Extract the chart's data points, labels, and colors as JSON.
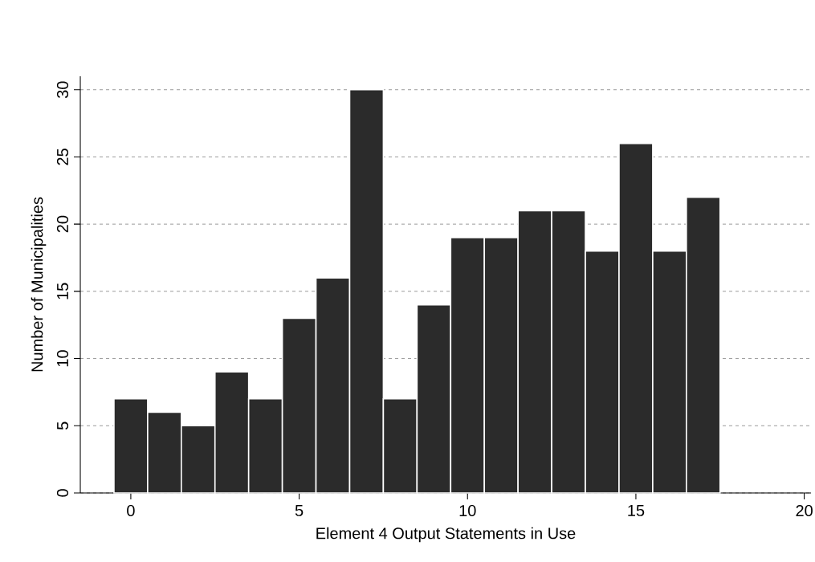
{
  "chart_data": {
    "type": "histogram",
    "xlabel": "Element 4 Output Statements in Use",
    "ylabel": "Number of Municipalities",
    "bins": [
      -0.5,
      0.5,
      1.5,
      2.5,
      3.5,
      4.5,
      5.5,
      6.5,
      7.5,
      8.5,
      9.5,
      10.5,
      11.5,
      12.5,
      13.5,
      14.5,
      15.5,
      16.5,
      17.5
    ],
    "values": [
      7,
      6,
      5,
      9,
      7,
      13,
      16,
      30,
      7,
      14,
      19,
      19,
      21,
      21,
      18,
      26,
      18,
      22
    ],
    "color": "#2b2b2b",
    "xlim": [
      -1.5,
      20.2
    ],
    "ylim": [
      0,
      31
    ],
    "xticks": [
      0,
      5,
      10,
      15,
      20
    ],
    "yticks": [
      0,
      5,
      10,
      15,
      20,
      25,
      30
    ],
    "grid": "y"
  }
}
